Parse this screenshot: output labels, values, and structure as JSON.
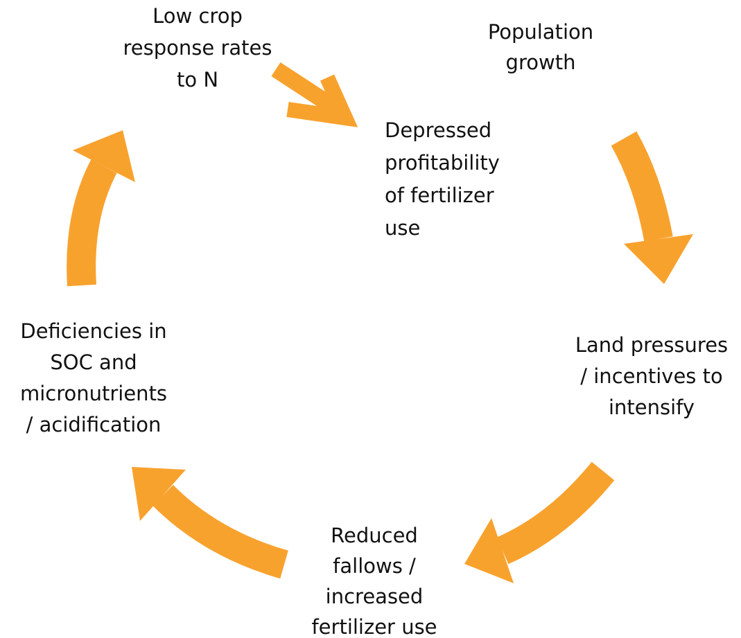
{
  "nodes": [
    {
      "lines": [
        "Low crop",
        "response rates",
        "to N"
      ]
    },
    {
      "lines": [
        "Population",
        "growth"
      ]
    },
    {
      "lines": [
        "Depressed",
        "profitability",
        "of fertilizer",
        "use"
      ]
    },
    {
      "lines": [
        "Land pressures",
        "/ incentives to",
        "intensify"
      ]
    },
    {
      "lines": [
        "Reduced",
        "fallows /",
        "increased",
        "fertilizer use"
      ]
    },
    {
      "lines": [
        "Deficiencies in",
        "SOC and",
        "micronutrients",
        "/ acidification"
      ]
    }
  ]
}
